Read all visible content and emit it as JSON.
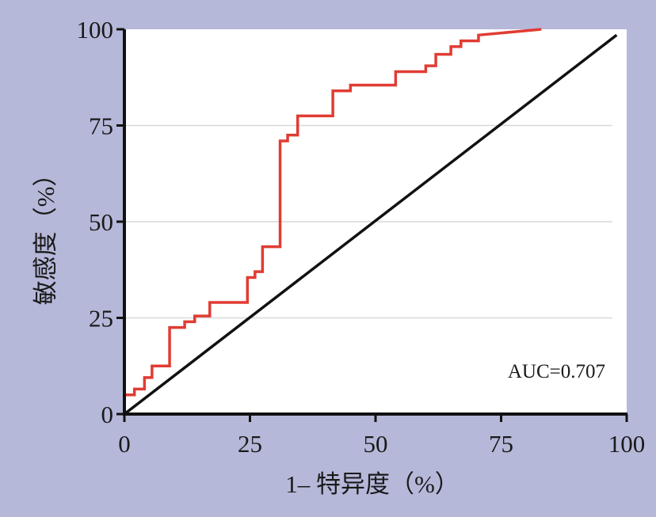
{
  "chart_data": {
    "type": "line",
    "title": "",
    "xlabel": "1– 特异度（%）",
    "ylabel": "敏感度（%）",
    "xlim": [
      0,
      100
    ],
    "ylim": [
      0,
      100
    ],
    "xticks": [
      0,
      25,
      50,
      75,
      100
    ],
    "yticks": [
      0,
      25,
      50,
      75,
      100
    ],
    "grid": "horizontal",
    "annotation": "AUC=0.707",
    "colors": {
      "roc": "#e03c33",
      "reference": "#111111",
      "background": "#b6b8d9",
      "plot": "#ffffff",
      "grid": "#d9d9d9"
    },
    "series": [
      {
        "name": "",
        "style": "step",
        "x": [
          0,
          0,
          2,
          2,
          4,
          4,
          5.5,
          5.5,
          9,
          9,
          12,
          12,
          14,
          14,
          17,
          17,
          24.5,
          24.5,
          26,
          26,
          27.5,
          27.5,
          31,
          31,
          32.5,
          32.5,
          34.5,
          34.5,
          41.5,
          41.5,
          45,
          45,
          54,
          54,
          60,
          60,
          62,
          62,
          65,
          65,
          67,
          67,
          70.5,
          70.5,
          83
        ],
        "y": [
          0,
          5,
          5,
          6.5,
          6.5,
          9.5,
          9.5,
          12.5,
          12.5,
          22.5,
          22.5,
          24,
          24,
          25.5,
          25.5,
          29,
          29,
          35.5,
          35.5,
          37,
          37,
          43.5,
          43.5,
          71,
          71,
          72.5,
          72.5,
          77.5,
          77.5,
          84,
          84,
          85.5,
          85.5,
          89,
          89,
          90.5,
          90.5,
          93.5,
          93.5,
          95.5,
          95.5,
          97,
          97,
          98.5,
          100
        ]
      },
      {
        "name": "",
        "style": "line",
        "x": [
          0,
          98
        ],
        "y": [
          0,
          98.5
        ]
      }
    ]
  }
}
